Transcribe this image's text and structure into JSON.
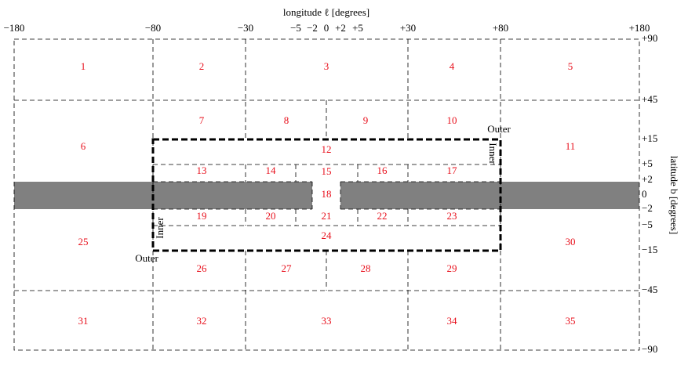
{
  "x_axis": {
    "label": "longitude ℓ [degrees]",
    "ticks": [
      "−180",
      "−80",
      "−30",
      "−5",
      "−2",
      "0",
      "+2",
      "+5",
      "+30",
      "+80",
      "+180"
    ]
  },
  "y_axis": {
    "label": "latitude b [degrees]",
    "ticks": [
      "+90",
      "+45",
      "+15",
      "+5",
      "+2",
      "0",
      "−2",
      "−5",
      "−15",
      "−45",
      "−90"
    ]
  },
  "regions": [
    "1",
    "2",
    "3",
    "4",
    "5",
    "6",
    "7",
    "8",
    "9",
    "10",
    "11",
    "12",
    "13",
    "14",
    "15",
    "16",
    "17",
    "18",
    "19",
    "20",
    "21",
    "22",
    "23",
    "24",
    "25",
    "26",
    "27",
    "28",
    "29",
    "30",
    "31",
    "32",
    "33",
    "34",
    "35"
  ],
  "annotations": {
    "outer_top": "Outer",
    "inner_top": "Inner",
    "inner_bottom": "Inner",
    "outer_bottom": "Outer"
  }
}
